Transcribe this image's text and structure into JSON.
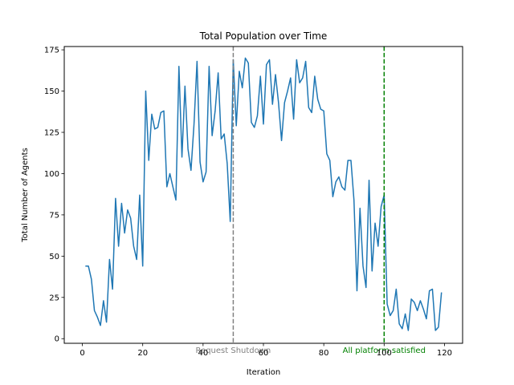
{
  "chart_data": {
    "type": "line",
    "title": "Total Population over Time",
    "xlabel": "Iteration",
    "ylabel": "Total Number of Agents",
    "xlim": [
      -6,
      126
    ],
    "ylim": [
      -2.8,
      177
    ],
    "xticks": [
      0,
      20,
      40,
      60,
      80,
      100,
      120
    ],
    "yticks": [
      0,
      25,
      50,
      75,
      100,
      125,
      150,
      175
    ],
    "grid": false,
    "series": [
      {
        "color": "#1f77b4",
        "x": [
          1,
          2,
          3,
          4,
          5,
          6,
          7,
          8,
          9,
          10,
          11,
          12,
          13,
          14,
          15,
          16,
          17,
          18,
          19,
          20,
          21,
          22,
          23,
          24,
          25,
          26,
          27,
          28,
          29,
          30,
          31,
          32,
          33,
          34,
          35,
          36,
          37,
          38,
          39,
          40,
          41,
          42,
          43,
          44,
          45,
          46,
          47,
          48,
          49,
          50,
          51,
          52,
          53,
          54,
          55,
          56,
          57,
          58,
          59,
          60,
          61,
          62,
          63,
          64,
          65,
          66,
          67,
          68,
          69,
          70,
          71,
          72,
          73,
          74,
          75,
          76,
          77,
          78,
          79,
          80,
          81,
          82,
          83,
          84,
          85,
          86,
          87,
          88,
          89,
          90,
          91,
          92,
          93,
          94,
          95,
          96,
          97,
          98,
          99,
          100,
          101,
          102,
          103,
          104,
          105,
          106,
          107,
          108,
          109,
          110,
          111,
          112,
          113,
          114,
          115,
          116,
          117,
          118,
          119
        ],
        "y": [
          44,
          44,
          36,
          17,
          13,
          8,
          23,
          10,
          48,
          30,
          85,
          56,
          82,
          64,
          78,
          73,
          56,
          48,
          87,
          44,
          150,
          108,
          136,
          127,
          128,
          137,
          138,
          92,
          100,
          92,
          84,
          165,
          110,
          153,
          115,
          102,
          130,
          168,
          107,
          95,
          101,
          165,
          123,
          138,
          161,
          121,
          124,
          106,
          71,
          169,
          129,
          162,
          152,
          170,
          167,
          131,
          128,
          135,
          159,
          130,
          166,
          169,
          142,
          160,
          143,
          120,
          143,
          150,
          158,
          133,
          169,
          155,
          158,
          168,
          140,
          137,
          159,
          145,
          139,
          138,
          112,
          108,
          86,
          95,
          98,
          92,
          90,
          108,
          108,
          84,
          29,
          79,
          44,
          31,
          96,
          41,
          70,
          56,
          80,
          87,
          21,
          14,
          17,
          30,
          9,
          6,
          15,
          5,
          24,
          22,
          17,
          23,
          18,
          12,
          29,
          30,
          5,
          7,
          28
        ]
      }
    ],
    "annotations": [
      {
        "x": 50,
        "label": "Request Shutdown",
        "color": "#808080"
      },
      {
        "x": 100,
        "label": "All platform satisfied",
        "color": "#008000"
      }
    ]
  }
}
